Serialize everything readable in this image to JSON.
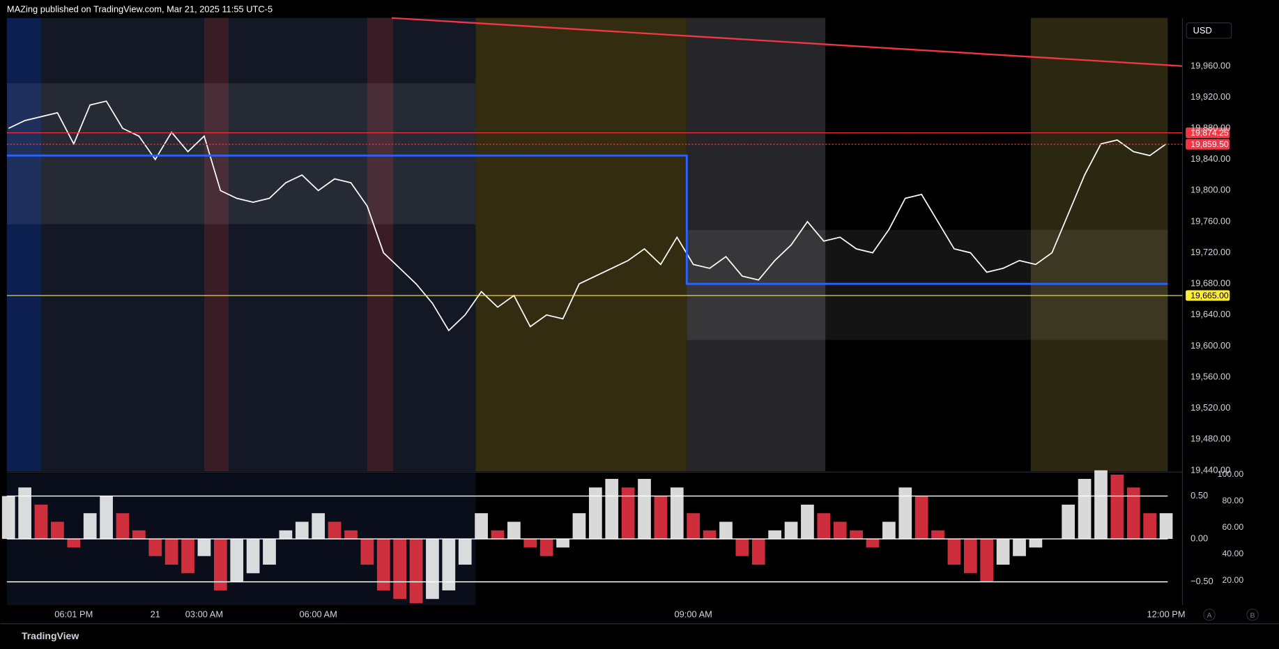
{
  "header": {
    "title": "MAZing published on TradingView.com, Mar 21, 2025 11:55 UTC-5"
  },
  "currency": "USD",
  "footer": {
    "brand": "TradingView"
  },
  "controls": [
    "A",
    "B"
  ],
  "chart_data": [
    {
      "type": "line",
      "categories": [
        null,
        null,
        null,
        null,
        "06:01 PM",
        null,
        null,
        null,
        null,
        "21",
        null,
        null,
        "03:00 AM",
        null,
        null,
        null,
        null,
        null,
        null,
        "06:00 AM",
        null,
        null,
        null,
        null,
        null,
        null,
        null,
        null,
        null,
        null,
        null,
        null,
        null,
        null,
        null,
        null,
        null,
        null,
        null,
        null,
        null,
        null,
        "09:00 AM",
        null,
        null,
        null,
        null,
        null,
        null,
        null,
        null,
        null,
        null,
        null,
        null,
        null,
        null,
        null,
        null,
        null,
        null,
        null,
        null,
        null,
        null,
        null,
        null,
        null,
        null,
        null,
        null,
        "12:00 PM"
      ],
      "series": [
        {
          "color": "#ffffff",
          "values": [
            19880,
            19890,
            19895,
            19900,
            19860,
            19910,
            19915,
            19880,
            19870,
            19840,
            19875,
            19850,
            19870,
            19800,
            19790,
            19785,
            19790,
            19810,
            19820,
            19800,
            19815,
            19810,
            19780,
            19720,
            19700,
            19680,
            19655,
            19620,
            19640,
            19670,
            19650,
            19665,
            19625,
            19640,
            19635,
            19680,
            19690,
            19700,
            19710,
            19725,
            19705,
            19740,
            19705,
            19700,
            19715,
            19690,
            19685,
            19710,
            19730,
            19760,
            19735,
            19740,
            19725,
            19720,
            19750,
            19790,
            19795,
            19760,
            19725,
            19720,
            19695,
            19700,
            19710,
            19705,
            19720,
            19770,
            19820,
            19860,
            19865,
            19850,
            19845,
            19860
          ]
        }
      ],
      "ylim": [
        19439,
        20022
      ],
      "yticks": [
        {
          "value": 19440,
          "label": "19,440.00"
        },
        {
          "value": 19480,
          "label": "19,480.00"
        },
        {
          "value": 19520,
          "label": "19,520.00"
        },
        {
          "value": 19560,
          "label": "19,560.00"
        },
        {
          "value": 19600,
          "label": "19,600.00"
        },
        {
          "value": 19640,
          "label": "19,640.00"
        },
        {
          "value": 19680,
          "label": "19,680.00"
        },
        {
          "value": 19720,
          "label": "19,720.00"
        },
        {
          "value": 19760,
          "label": "19,760.00"
        },
        {
          "value": 19800,
          "label": "19,800.00"
        },
        {
          "value": 19840,
          "label": "19,840.00"
        },
        {
          "value": 19880,
          "label": "19,880.00"
        },
        {
          "value": 19920,
          "label": "19,920.00"
        },
        {
          "value": 19960,
          "label": "19,960.00"
        }
      ],
      "grid": false,
      "levels": [
        {
          "value": 19874.25,
          "label": "19,874.25",
          "color": "#f23645"
        },
        {
          "value": 19859.5,
          "label": "19,859.50",
          "color": "#f23645"
        },
        {
          "value": 19665,
          "label": "19,665.00",
          "color": "#ffeb3b"
        }
      ],
      "range_levels": {
        "color": "#2962ff",
        "values": [
          19845,
          19680
        ]
      }
    },
    {
      "type": "bar",
      "values": [
        0.5,
        0.6,
        0.4,
        0.2,
        -0.1,
        0.3,
        0.5,
        0.3,
        0.1,
        -0.2,
        -0.3,
        -0.4,
        -0.2,
        -0.6,
        -0.5,
        -0.4,
        -0.3,
        0.1,
        0.2,
        0.3,
        0.2,
        0.1,
        -0.3,
        -0.6,
        -0.7,
        -0.75,
        -0.7,
        -0.6,
        -0.3,
        0.3,
        0.1,
        0.2,
        -0.1,
        -0.2,
        -0.1,
        0.3,
        0.6,
        0.7,
        0.6,
        0.7,
        0.5,
        0.6,
        0.3,
        0.1,
        0.2,
        -0.2,
        -0.3,
        0.1,
        0.2,
        0.4,
        0.3,
        0.2,
        0.1,
        -0.1,
        0.2,
        0.6,
        0.5,
        0.1,
        -0.3,
        -0.4,
        -0.5,
        -0.3,
        -0.2,
        -0.1,
        0,
        0.4,
        0.7,
        0.8,
        0.75,
        0.6,
        0.3,
        0.3
      ],
      "colors": {
        "rising": "#ffffff",
        "falling": "#f23645"
      },
      "ylim": [
        -0.77,
        0.77
      ],
      "yticks": [
        {
          "value": 0.5,
          "label": "0.50"
        },
        {
          "value": 0,
          "label": "0.00"
        },
        {
          "value": -0.5,
          "label": "−0.50"
        }
      ],
      "grid": true,
      "y2lim": [
        1.5,
        101.2
      ],
      "y2ticks": [
        {
          "value": 20,
          "label": "20.00"
        },
        {
          "value": 40,
          "label": "40.00"
        },
        {
          "value": 60,
          "label": "60.00"
        },
        {
          "value": 80,
          "label": "80.00"
        },
        {
          "value": 100,
          "label": "100.00"
        }
      ]
    }
  ]
}
